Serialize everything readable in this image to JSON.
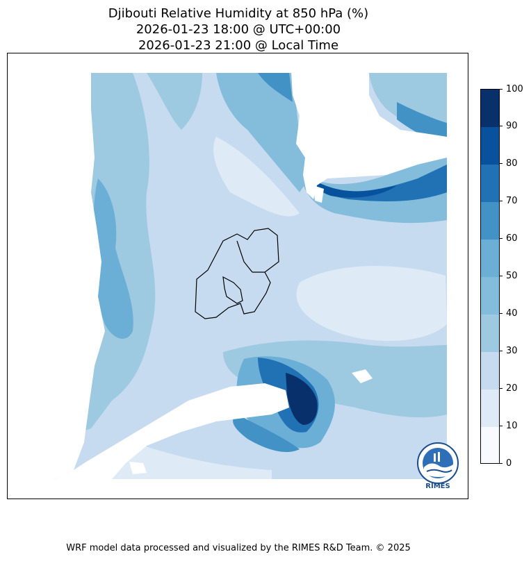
{
  "title": {
    "line1": "Djibouti Relative Humidity at 850 hPa (%)",
    "line2": "2026-01-23 18:00 @ UTC+00:00",
    "line3": "2026-01-23 21:00 @ Local Time"
  },
  "colorbar": {
    "ticks": [
      "0",
      "10",
      "20",
      "30",
      "40",
      "50",
      "60",
      "70",
      "80",
      "90",
      "100"
    ],
    "colors": [
      "#f7fbff",
      "#deebf7",
      "#c6dbef",
      "#9ecae1",
      "#84bcdb",
      "#6baed6",
      "#4292c6",
      "#2171b5",
      "#08519c",
      "#08306b"
    ]
  },
  "logo": {
    "text": "RIMES"
  },
  "footer": "WRF model data processed and visualized by the RIMES R&D Team. © 2025"
}
